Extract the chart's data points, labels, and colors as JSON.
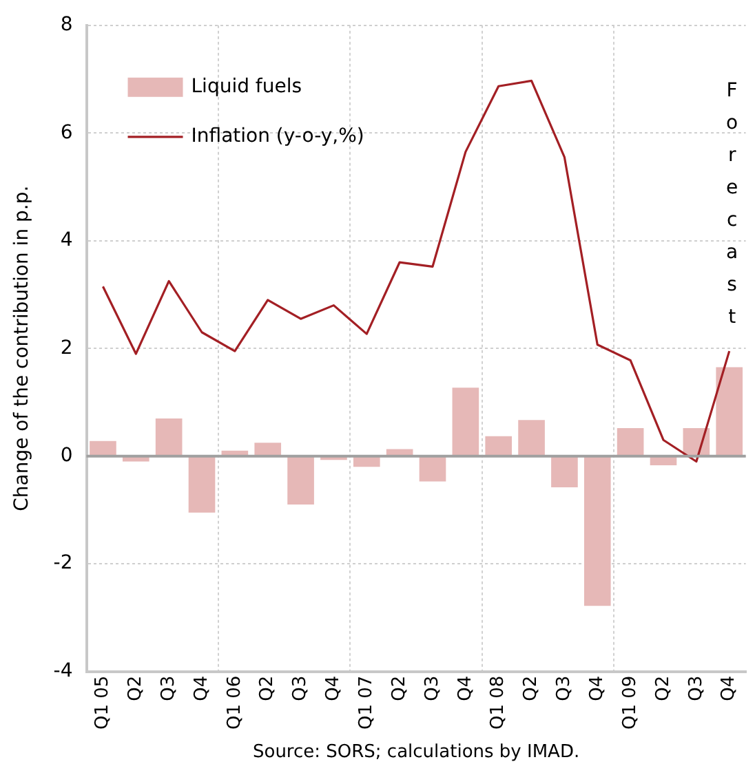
{
  "chart_data": {
    "type": "bar",
    "ylabel": "Change of the contribution in p.p.",
    "categories": [
      "Q1 05",
      "Q2",
      "Q3",
      "Q4",
      "Q1 06",
      "Q2",
      "Q3",
      "Q4",
      "Q1 07",
      "Q2",
      "Q3",
      "Q4",
      "Q1 08",
      "Q2",
      "Q3",
      "Q4",
      "Q1 09",
      "Q2",
      "Q3",
      "Q4"
    ],
    "series": [
      {
        "name": "Liquid fuels",
        "color": "#e6b8b7",
        "values": [
          0.28,
          -0.1,
          0.7,
          -1.05,
          0.1,
          0.25,
          -0.9,
          -0.07,
          -0.2,
          0.13,
          -0.47,
          1.27,
          0.37,
          0.67,
          -0.58,
          -2.78,
          0.52,
          -0.17,
          0.52,
          1.65
        ]
      },
      {
        "name": "Inflation (y-o-y,%)",
        "type": "line",
        "color": "#a31f24",
        "values": [
          3.15,
          1.9,
          3.25,
          2.3,
          1.95,
          2.9,
          2.55,
          2.8,
          2.27,
          3.6,
          3.52,
          5.65,
          6.87,
          6.97,
          5.55,
          2.07,
          1.78,
          0.3,
          -0.1,
          1.95
        ]
      }
    ],
    "ylim": [
      -4,
      8
    ],
    "yticks": [
      -4,
      -2,
      0,
      2,
      4,
      6,
      8
    ],
    "grid": true,
    "legend": "top left",
    "marker": "none",
    "annotations": [
      "Forecast",
      "Source: SORS; calculations by IMAD."
    ]
  }
}
